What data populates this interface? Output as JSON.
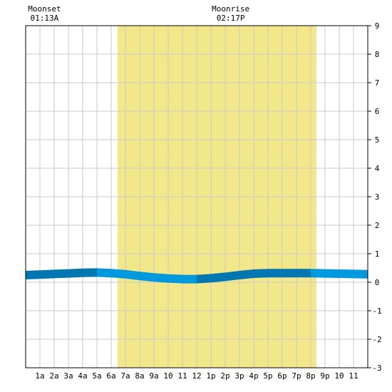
{
  "chart_data": {
    "type": "area",
    "title": "",
    "xlabel": "",
    "ylabel": "",
    "x_tick_labels": [
      "1a",
      "2a",
      "3a",
      "4a",
      "5a",
      "6a",
      "7a",
      "8a",
      "9a",
      "10",
      "11",
      "12",
      "1p",
      "2p",
      "3p",
      "4p",
      "5p",
      "6p",
      "7p",
      "8p",
      "9p",
      "10",
      "11"
    ],
    "xlim": [
      0,
      24
    ],
    "ylim": [
      -3,
      9
    ],
    "y_ticks": [
      9,
      8,
      7,
      6,
      5,
      4,
      3,
      2,
      1,
      0,
      -1,
      -2,
      -3
    ],
    "grid": true,
    "daylight_band": {
      "start": 6.45,
      "end": 20.4,
      "color": "#f2e88a"
    },
    "moon_events": [
      {
        "label": "Moonset",
        "time": "01:13A",
        "hour": 1.22
      },
      {
        "label": "Moonrise",
        "time": "02:17P",
        "hour": 14.28
      }
    ],
    "series": [
      {
        "x": [
          0,
          1,
          2,
          3,
          4,
          5,
          6,
          7,
          8,
          9,
          10,
          11,
          12,
          13,
          14,
          15,
          16,
          17,
          18,
          19,
          20,
          21,
          22,
          23,
          24
        ],
        "values": [
          0.25,
          0.27,
          0.29,
          0.31,
          0.33,
          0.34,
          0.32,
          0.28,
          0.22,
          0.17,
          0.13,
          0.11,
          0.11,
          0.14,
          0.19,
          0.25,
          0.3,
          0.32,
          0.32,
          0.32,
          0.32,
          0.31,
          0.3,
          0.29,
          0.28
        ]
      }
    ],
    "band_colors": [
      "#0077b0",
      "#0099dd"
    ]
  }
}
